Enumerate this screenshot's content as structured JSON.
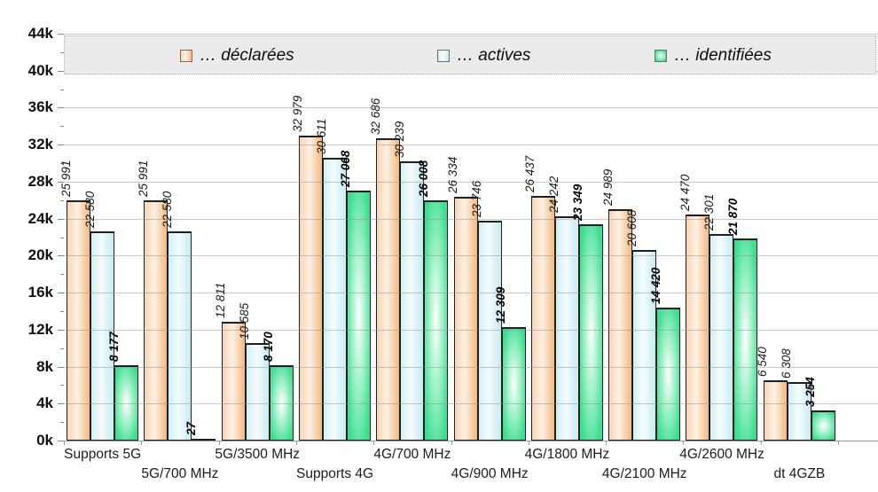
{
  "chart_data": {
    "type": "bar",
    "title": "",
    "xlabel": "",
    "ylabel": "",
    "ylim": [
      0,
      44000
    ],
    "ytick_step": 4000,
    "ytick_labels": [
      "0k",
      "4k",
      "8k",
      "12k",
      "16k",
      "20k",
      "24k",
      "28k",
      "32k",
      "36k",
      "40k",
      "44k"
    ],
    "grid": "horizontal-solid-light-gray",
    "legend_position": "top-strip-gray-band",
    "categories": [
      "Supports 5G",
      "5G/700 MHz",
      "5G/3500 MHz",
      "Supports 4G",
      "4G/700 MHz",
      "4G/900 MHz",
      "4G/1800 MHz",
      "4G/2100 MHz",
      "4G/2600 MHz",
      "dt 4GZB"
    ],
    "series": [
      {
        "name": "… déclarées",
        "key": "declarees",
        "values": [
          25991,
          25991,
          12811,
          32979,
          32686,
          26334,
          26437,
          24989,
          24470,
          6540
        ],
        "labels": [
          "25 991",
          "25 991",
          "12 811",
          "32 979",
          "32 686",
          "26 334",
          "26 437",
          "24 989",
          "24 470",
          "6 540"
        ],
        "label_style": "italic",
        "fill": {
          "type": "linear",
          "left": "#f8d5b5",
          "center": "#fdf0e2",
          "right": "#f2b983"
        }
      },
      {
        "name": "… actives",
        "key": "actives",
        "values": [
          22580,
          22580,
          10585,
          30611,
          30239,
          23746,
          24242,
          20608,
          22301,
          6308
        ],
        "labels": [
          "22 580",
          "22 580",
          "10 585",
          "30 611",
          "30 239",
          "23 746",
          "24 242",
          "20 608",
          "22 301",
          "6 308"
        ],
        "label_style": "italic",
        "fill": {
          "type": "linear",
          "left": "#d2eff3",
          "center": "#f4fcfd",
          "right": "#c7ebf0"
        }
      },
      {
        "name": "… identifiées",
        "key": "identifiees",
        "values": [
          8177,
          27,
          8170,
          27068,
          26008,
          12309,
          23349,
          14420,
          21870,
          3254
        ],
        "labels": [
          "8 177",
          "27",
          "8 170",
          "27 068",
          "26 008",
          "12 309",
          "23 349",
          "14 420",
          "21 870",
          "3 254"
        ],
        "label_style": "bold-italic",
        "fill": {
          "type": "radial",
          "center": "#ffffff",
          "mid": "#a2f1ca",
          "edge": "#3cdf90"
        }
      }
    ],
    "colors": {
      "grid": "#919191",
      "axis": "#9a9a9a",
      "bar_outline": "#1f1f1f",
      "legend_band": "#ebebeb",
      "text": "#111111"
    }
  }
}
